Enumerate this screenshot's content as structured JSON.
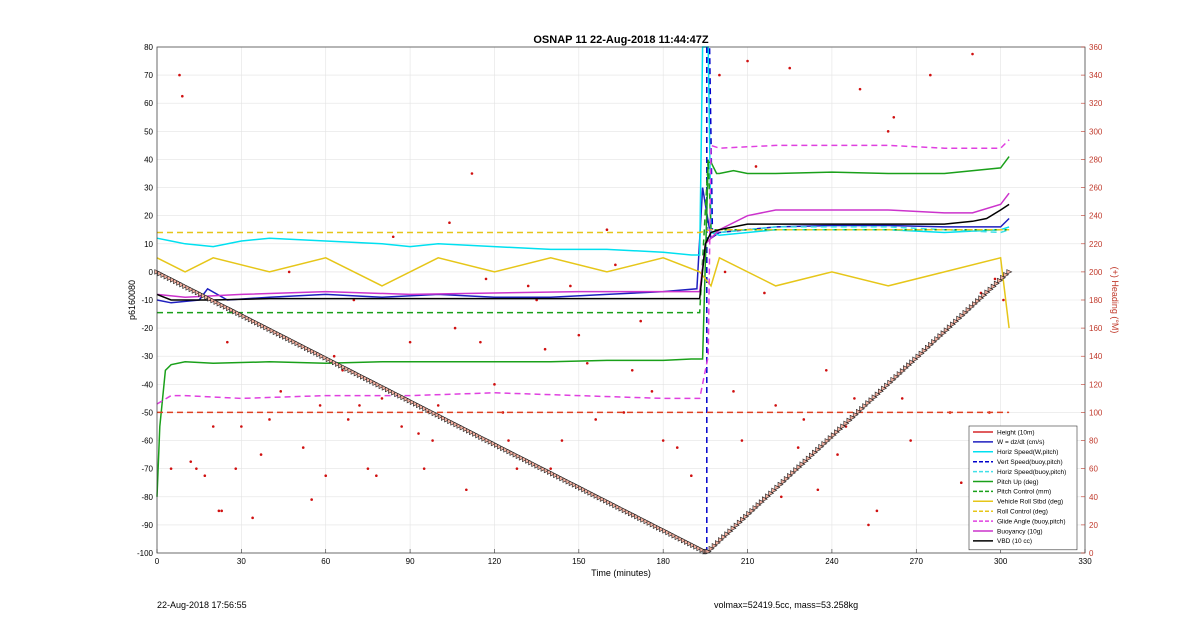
{
  "chart_data": {
    "type": "line",
    "title": "OSNAP 11 22-Aug-2018 11:44:47Z",
    "xlabel": "Time (minutes)",
    "ylabel": "p6160080",
    "ylabel_right": "(+) Heading (°M)",
    "xlim": [
      0,
      330
    ],
    "ylim": [
      -100,
      80
    ],
    "ylim_right": [
      0,
      360
    ],
    "x_ticks": [
      0,
      30,
      60,
      90,
      120,
      150,
      180,
      210,
      240,
      270,
      300,
      330
    ],
    "y_ticks": [
      -100,
      -90,
      -80,
      -70,
      -60,
      -50,
      -40,
      -30,
      -20,
      -10,
      0,
      10,
      20,
      30,
      40,
      50,
      60,
      70,
      80
    ],
    "y_ticks_right": [
      0,
      20,
      40,
      60,
      80,
      100,
      120,
      140,
      160,
      180,
      200,
      220,
      240,
      260,
      280,
      300,
      320,
      340,
      360
    ],
    "grid": true,
    "legend_position": "bottom-right",
    "series": [
      {
        "name": "Height (10m)",
        "color": "#d62728",
        "dash": "solid",
        "x": [
          0,
          195,
          196,
          303
        ],
        "y": [
          0,
          -99.5,
          -99.5,
          0
        ]
      },
      {
        "name": "W = dz/dt (cm/s)",
        "color": "#1f1fbf",
        "dash": "solid",
        "x": [
          0,
          5,
          15,
          18,
          25,
          40,
          60,
          80,
          100,
          120,
          140,
          160,
          180,
          192,
          194,
          197,
          200,
          220,
          240,
          260,
          280,
          300,
          303
        ],
        "y": [
          -10,
          -11,
          -10,
          -6,
          -10,
          -9,
          -8,
          -9,
          -8,
          -9,
          -9,
          -8,
          -7,
          -6,
          30,
          12,
          14,
          16,
          16.5,
          16.5,
          16,
          16,
          19
        ]
      },
      {
        "name": "Horiz Speed(W,pitch)",
        "color": "#00e0f0",
        "dash": "solid",
        "x": [
          0,
          5,
          10,
          20,
          30,
          40,
          60,
          80,
          90,
          100,
          120,
          140,
          160,
          180,
          190,
          193,
          194,
          196,
          197,
          200,
          220,
          240,
          260,
          280,
          300,
          303
        ],
        "y": [
          12,
          11,
          10,
          9,
          11,
          12,
          11,
          10,
          9,
          10,
          9,
          8,
          8,
          7,
          6,
          6,
          80,
          80,
          14,
          13,
          15,
          15,
          15,
          14,
          15,
          16
        ]
      },
      {
        "name": "Vert Speed(buoy,pitch)",
        "color": "#0000cc",
        "dash": "dashed",
        "x": [
          195.5,
          195.5,
          196.5,
          197.5
        ],
        "y": [
          -100,
          80,
          80,
          15
        ]
      },
      {
        "name": "Horiz Speed(buoy,pitch)",
        "color": "#40e0e8",
        "dash": "dashed",
        "x": [
          197,
          200,
          220,
          240,
          260,
          280,
          300,
          303
        ],
        "y": [
          14,
          14,
          16,
          16,
          16,
          15,
          14,
          15
        ]
      },
      {
        "name": "Pitch Up (deg)",
        "color": "#1aa01a",
        "dash": "solid",
        "x": [
          0,
          1,
          3,
          5,
          10,
          20,
          40,
          60,
          80,
          100,
          120,
          140,
          160,
          180,
          190,
          194,
          196,
          197,
          199,
          200,
          205,
          210,
          220,
          240,
          260,
          280,
          300,
          303
        ],
        "y": [
          -80,
          -55,
          -35,
          -33,
          -32,
          -32.5,
          -32,
          -32.5,
          -32,
          -32,
          -32,
          -32,
          -31.5,
          -31.5,
          -31,
          -31,
          39,
          39,
          35,
          35,
          36,
          35,
          35,
          35.5,
          35,
          35,
          37,
          41
        ]
      },
      {
        "name": "Pitch Control (mm)",
        "color": "#1aa01a",
        "dash": "dashed",
        "x": [
          0,
          193,
          196,
          197,
          303
        ],
        "y": [
          -14.5,
          -14.5,
          40,
          15,
          15
        ]
      },
      {
        "name": "Vehicle Roll Stbd (deg)",
        "color": "#e6c619",
        "dash": "solid",
        "x": [
          0,
          10,
          20,
          40,
          60,
          80,
          100,
          120,
          140,
          160,
          180,
          193,
          197,
          200,
          220,
          240,
          260,
          280,
          300,
          303
        ],
        "y": [
          5,
          0,
          5,
          0,
          5,
          -5,
          5,
          0,
          5,
          0,
          5,
          0,
          -5,
          5,
          -5,
          0,
          -5,
          0,
          5,
          -20
        ]
      },
      {
        "name": "Roll Control (deg)",
        "color": "#e6c619",
        "dash": "dashed",
        "x": [
          0,
          60,
          120,
          193,
          197,
          250,
          303
        ],
        "y": [
          14,
          14,
          14,
          14,
          15,
          15,
          15
        ]
      },
      {
        "name": "Glide Angle (buoy,pitch)",
        "color": "#e040e0",
        "dash": "dashed",
        "x": [
          0,
          5,
          10,
          30,
          60,
          90,
          120,
          150,
          180,
          193,
          196,
          197,
          200,
          220,
          240,
          260,
          280,
          300,
          303
        ],
        "y": [
          -47,
          -44,
          -44,
          -45,
          -44,
          -44,
          -43,
          -44,
          -45,
          -45,
          -30,
          45,
          44,
          45,
          45,
          45,
          44,
          44,
          47
        ]
      },
      {
        "name": "Buoyancy (10g)",
        "color": "#cc33cc",
        "dash": "solid",
        "x": [
          0,
          10,
          30,
          60,
          90,
          120,
          150,
          180,
          193,
          195,
          197,
          200,
          210,
          220,
          240,
          260,
          280,
          290,
          300,
          303
        ],
        "y": [
          -8,
          -9,
          -8,
          -7,
          -8,
          -7.5,
          -7,
          -7,
          -7,
          10,
          12,
          15,
          20,
          22,
          22,
          22,
          21,
          21,
          24,
          28
        ]
      },
      {
        "name": "VBD (10 cc)",
        "color": "#000000",
        "dash": "solid",
        "x": [
          0,
          5,
          20,
          40,
          60,
          80,
          100,
          120,
          140,
          160,
          180,
          193,
          195,
          197,
          200,
          205,
          210,
          220,
          240,
          260,
          280,
          290,
          295,
          300,
          303
        ],
        "y": [
          -8,
          -10,
          -10,
          -9.5,
          -9.5,
          -9.5,
          -9.5,
          -9.5,
          -9.5,
          -9.5,
          -9.5,
          -9.5,
          10,
          14,
          15,
          16,
          17,
          17,
          17,
          17,
          17,
          18,
          19,
          22,
          24
        ]
      },
      {
        "name": "Height (10m)",
        "color": "#e04020",
        "dash": "dashed",
        "x": [
          0,
          303
        ],
        "y": [
          -50,
          -50
        ]
      }
    ],
    "heading_scatter": {
      "color": "#d01010",
      "axis": "right",
      "x": [
        5,
        8,
        9,
        12,
        14,
        17,
        20,
        22,
        23,
        25,
        28,
        30,
        34,
        37,
        40,
        44,
        47,
        52,
        55,
        58,
        60,
        63,
        66,
        68,
        70,
        72,
        75,
        78,
        80,
        84,
        87,
        90,
        93,
        95,
        98,
        100,
        104,
        106,
        110,
        112,
        115,
        117,
        120,
        123,
        125,
        128,
        132,
        135,
        138,
        140,
        144,
        147,
        150,
        153,
        156,
        160,
        163,
        166,
        169,
        172,
        176,
        180,
        185,
        190,
        200,
        202,
        205,
        208,
        210,
        213,
        216,
        220,
        222,
        225,
        228,
        230,
        235,
        238,
        242,
        245,
        248,
        250,
        253,
        256,
        260,
        262,
        265,
        268,
        271,
        275,
        278,
        282,
        286,
        290,
        293,
        296,
        298,
        301
      ],
      "y": [
        60,
        340,
        325,
        65,
        60,
        55,
        90,
        30,
        30,
        150,
        60,
        90,
        25,
        70,
        95,
        115,
        200,
        75,
        38,
        105,
        55,
        140,
        130,
        95,
        180,
        105,
        60,
        55,
        110,
        225,
        90,
        150,
        85,
        60,
        80,
        105,
        235,
        160,
        45,
        270,
        150,
        195,
        120,
        100,
        80,
        60,
        190,
        180,
        145,
        60,
        80,
        190,
        155,
        135,
        95,
        230,
        205,
        100,
        130,
        165,
        115,
        80,
        75,
        55,
        340,
        200,
        115,
        80,
        350,
        275,
        185,
        105,
        40,
        345,
        75,
        95,
        45,
        130,
        70,
        90,
        110,
        330,
        20,
        30,
        300,
        310,
        110,
        80,
        140,
        340,
        155,
        100,
        50,
        355,
        185,
        100,
        195,
        180
      ]
    }
  },
  "footer": {
    "timestamp": "22-Aug-2018 17:56:55",
    "summary": "volmax=52419.5cc, mass=53.258kg"
  }
}
